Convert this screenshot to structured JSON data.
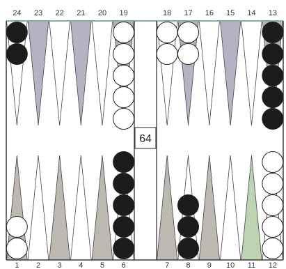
{
  "board": {
    "top_numbers": [
      "24",
      "23",
      "22",
      "21",
      "20",
      "19",
      "18",
      "17",
      "16",
      "15",
      "14",
      "13"
    ],
    "bottom_numbers": [
      "1",
      "2",
      "3",
      "4",
      "5",
      "6",
      "7",
      "8",
      "9",
      "10",
      "11",
      "12"
    ],
    "doubling_cube": "64",
    "colors": {
      "frame": "#3a3a3a",
      "border_top": "#7fb39a",
      "point_light": "#ffffff",
      "point_dark_top": "#b7b1c4",
      "point_dark_bottom": "#bdb8b2",
      "point_green": "#bcd4b0",
      "checker_black": "#1c1c1c",
      "checker_white": "#ffffff"
    },
    "checkers": [
      {
        "point": 24,
        "color": "black",
        "count": 2
      },
      {
        "point": 19,
        "color": "white",
        "count": 5
      },
      {
        "point": 18,
        "color": "white",
        "count": 2
      },
      {
        "point": 17,
        "color": "white",
        "count": 2
      },
      {
        "point": 13,
        "color": "black",
        "count": 5
      },
      {
        "point": 1,
        "color": "white",
        "count": 2
      },
      {
        "point": 6,
        "color": "black",
        "count": 5
      },
      {
        "point": 8,
        "color": "black",
        "count": 3
      },
      {
        "point": 12,
        "color": "white",
        "count": 5
      }
    ]
  }
}
